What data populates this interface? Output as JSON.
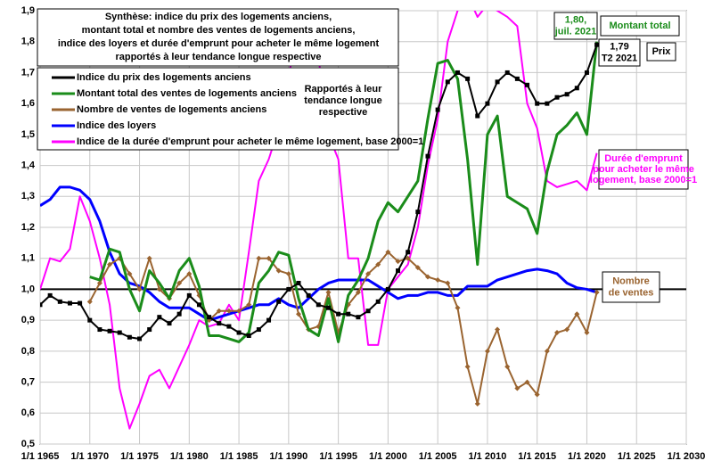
{
  "chart_data": {
    "type": "line",
    "title": [
      "Synthèse: indice du prix des logements anciens,",
      "montant total et nombre des ventes de logements anciens,",
      "indice des loyers et durée d'emprunt pour acheter le même logement",
      "rapportés à leur tendance longue respective"
    ],
    "annotations": [
      [
        "Rapportés  à leur",
        "tendance longue",
        "respective"
      ],
      [
        "1,80,",
        "juil. 2021"
      ],
      [
        "Montant total"
      ],
      [
        "1,79",
        "T2 2021"
      ],
      [
        "Prix"
      ],
      [
        "Durée d'emprunt",
        "pour acheter le même",
        "logement, base 2000=1"
      ],
      [
        "Nombre",
        "de ventes"
      ]
    ],
    "x": [
      1965,
      1966,
      1967,
      1968,
      1969,
      1970,
      1971,
      1972,
      1973,
      1974,
      1975,
      1976,
      1977,
      1978,
      1979,
      1980,
      1981,
      1982,
      1983,
      1984,
      1985,
      1986,
      1987,
      1988,
      1989,
      1990,
      1991,
      1992,
      1993,
      1994,
      1995,
      1996,
      1997,
      1998,
      1999,
      2000,
      2001,
      2002,
      2003,
      2004,
      2005,
      2006,
      2007,
      2008,
      2009,
      2010,
      2011,
      2012,
      2013,
      2014,
      2015,
      2016,
      2017,
      2018,
      2019,
      2020,
      2021
    ],
    "series": [
      {
        "name": "Indice du prix des logements anciens",
        "color": "#000000",
        "marker": "square",
        "values": [
          0.95,
          0.98,
          0.96,
          0.955,
          0.955,
          0.9,
          0.87,
          0.865,
          0.86,
          0.845,
          0.84,
          0.87,
          0.91,
          0.89,
          0.92,
          0.98,
          0.95,
          0.91,
          0.89,
          0.88,
          0.86,
          0.85,
          0.87,
          0.9,
          0.96,
          1.0,
          1.02,
          0.98,
          0.95,
          0.94,
          0.92,
          0.92,
          0.91,
          0.93,
          0.96,
          1.0,
          1.06,
          1.12,
          1.25,
          1.43,
          1.58,
          1.67,
          1.7,
          1.68,
          1.56,
          1.6,
          1.67,
          1.7,
          1.68,
          1.66,
          1.6,
          1.6,
          1.62,
          1.63,
          1.65,
          1.7,
          1.79
        ]
      },
      {
        "name": "Montant total des ventes de logements anciens",
        "color": "#1a8c1a",
        "marker": "none",
        "values": [
          null,
          null,
          null,
          null,
          null,
          1.04,
          1.03,
          1.13,
          1.12,
          1.0,
          0.93,
          1.06,
          1.02,
          0.97,
          1.06,
          1.1,
          1.01,
          0.85,
          0.85,
          0.84,
          0.83,
          0.86,
          1.02,
          1.06,
          1.12,
          1.11,
          0.97,
          0.87,
          0.85,
          0.97,
          0.83,
          0.98,
          1.03,
          1.1,
          1.22,
          1.28,
          1.25,
          1.3,
          1.35,
          1.55,
          1.73,
          1.74,
          1.68,
          1.42,
          1.08,
          1.5,
          1.56,
          1.3,
          1.28,
          1.26,
          1.18,
          1.38,
          1.5,
          1.53,
          1.57,
          1.5,
          1.8
        ]
      },
      {
        "name": "Nombre de ventes de logements anciens",
        "color": "#9a6430",
        "marker": "diamond",
        "values": [
          null,
          null,
          null,
          null,
          null,
          0.96,
          1.02,
          1.08,
          1.1,
          1.05,
          1.0,
          1.1,
          1.0,
          0.97,
          1.02,
          1.05,
          0.98,
          0.9,
          0.93,
          0.93,
          0.93,
          0.95,
          1.1,
          1.1,
          1.06,
          1.05,
          0.92,
          0.87,
          0.88,
          0.99,
          0.86,
          0.95,
          0.99,
          1.05,
          1.08,
          1.12,
          1.09,
          1.1,
          1.07,
          1.04,
          1.03,
          1.02,
          0.94,
          0.75,
          0.63,
          0.8,
          0.87,
          0.75,
          0.68,
          0.7,
          0.66,
          0.8,
          0.86,
          0.87,
          0.92,
          0.86,
          0.99
        ]
      },
      {
        "name": "Indice des loyers",
        "color": "#0000ff",
        "marker": "none",
        "values": [
          1.27,
          1.29,
          1.33,
          1.33,
          1.32,
          1.29,
          1.22,
          1.12,
          1.05,
          1.02,
          1.01,
          0.99,
          0.96,
          0.94,
          0.94,
          0.94,
          0.92,
          0.9,
          0.91,
          0.92,
          0.93,
          0.94,
          0.95,
          0.95,
          0.97,
          0.95,
          0.94,
          0.97,
          1.0,
          1.02,
          1.03,
          1.03,
          1.03,
          1.03,
          1.01,
          0.99,
          0.97,
          0.98,
          0.98,
          0.99,
          0.99,
          0.98,
          0.98,
          1.01,
          1.01,
          1.01,
          1.03,
          1.04,
          1.05,
          1.06,
          1.065,
          1.06,
          1.05,
          1.02,
          1.005,
          1.0,
          0.99
        ]
      },
      {
        "name": "Indice de la durée d'emprunt pour acheter le même logement, base 2000=1",
        "color": "#ff00ff",
        "marker": "none",
        "values": [
          1.0,
          1.1,
          1.09,
          1.13,
          1.3,
          1.22,
          1.1,
          0.95,
          0.68,
          0.55,
          0.63,
          0.72,
          0.74,
          0.68,
          0.75,
          0.82,
          0.9,
          0.88,
          0.89,
          0.95,
          0.9,
          1.12,
          1.35,
          1.42,
          1.52,
          1.7,
          1.8,
          1.9,
          1.75,
          1.5,
          1.42,
          1.1,
          1.1,
          0.82,
          0.82,
          1.0,
          1.04,
          1.08,
          1.2,
          1.4,
          1.55,
          1.8,
          1.9,
          1.95,
          1.88,
          1.92,
          1.9,
          1.88,
          1.85,
          1.6,
          1.52,
          1.35,
          1.33,
          1.34,
          1.35,
          1.32,
          1.44
        ]
      }
    ],
    "xlim": [
      1965,
      2030
    ],
    "xticks": [
      {
        "value": 1965,
        "label": "1/1 1965"
      },
      {
        "value": 1970,
        "label": "1/1 1970"
      },
      {
        "value": 1975,
        "label": "1/1 1975"
      },
      {
        "value": 1980,
        "label": "1/1 1980"
      },
      {
        "value": 1985,
        "label": "1/1 1985"
      },
      {
        "value": 1990,
        "label": "1/1 1990"
      },
      {
        "value": 1995,
        "label": "1/1 1995"
      },
      {
        "value": 2000,
        "label": "1/1 2000"
      },
      {
        "value": 2005,
        "label": "1/1 2005"
      },
      {
        "value": 2010,
        "label": "1/1 2010"
      },
      {
        "value": 2015,
        "label": "1/1 2015"
      },
      {
        "value": 2020,
        "label": "1/1 2020"
      },
      {
        "value": 2025,
        "label": "1/1 2025"
      },
      {
        "value": 2030,
        "label": "1/1 2030"
      }
    ],
    "ylim": [
      0.5,
      1.9
    ],
    "yticks": [
      {
        "value": 0.5,
        "label": "0,5"
      },
      {
        "value": 0.6,
        "label": "0,6"
      },
      {
        "value": 0.7,
        "label": "0,7"
      },
      {
        "value": 0.8,
        "label": "0,8"
      },
      {
        "value": 0.9,
        "label": "0,9"
      },
      {
        "value": 1.0,
        "label": "1,0"
      },
      {
        "value": 1.1,
        "label": "1,1"
      },
      {
        "value": 1.2,
        "label": "1,2"
      },
      {
        "value": 1.3,
        "label": "1,3"
      },
      {
        "value": 1.4,
        "label": "1,4"
      },
      {
        "value": 1.5,
        "label": "1,5"
      },
      {
        "value": 1.6,
        "label": "1,6"
      },
      {
        "value": 1.7,
        "label": "1,7"
      },
      {
        "value": 1.8,
        "label": "1,8"
      },
      {
        "value": 1.9,
        "label": "1,9"
      }
    ],
    "baseline": 1,
    "grid": true
  }
}
